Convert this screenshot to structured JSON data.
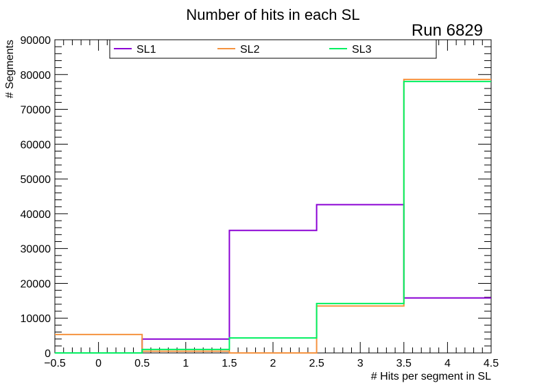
{
  "chart_data": {
    "type": "step",
    "title": "Number of hits in each SL",
    "annotation": "Run 6829",
    "xlabel": "# Hits per segment in SL",
    "ylabel": "# Segments",
    "xlim": [
      -0.5,
      4.5
    ],
    "ylim": [
      0,
      90000
    ],
    "x_ticks": [
      -0.5,
      0,
      0.5,
      1,
      1.5,
      2,
      2.5,
      3,
      3.5,
      4,
      4.5
    ],
    "x_tick_labels": [
      "−0.5",
      "0",
      "0.5",
      "1",
      "1.5",
      "2",
      "2.5",
      "3",
      "3.5",
      "4",
      "4.5"
    ],
    "y_ticks": [
      0,
      10000,
      20000,
      30000,
      40000,
      50000,
      60000,
      70000,
      80000,
      90000
    ],
    "y_tick_labels": [
      "0",
      "10000",
      "20000",
      "30000",
      "40000",
      "50000",
      "60000",
      "70000",
      "80000",
      "90000"
    ],
    "bin_edges": [
      -0.5,
      0.5,
      1.5,
      2.5,
      3.5,
      4.5
    ],
    "series": [
      {
        "name": "SL1",
        "color": "#8a00d4",
        "values": [
          0,
          4000,
          35200,
          42600,
          15800
        ]
      },
      {
        "name": "SL2",
        "color": "#f5923e",
        "values": [
          5300,
          500,
          0,
          13500,
          78600
        ]
      },
      {
        "name": "SL3",
        "color": "#00f060",
        "values": [
          0,
          1000,
          4300,
          14200,
          78000
        ]
      }
    ],
    "legend_position": "top"
  }
}
